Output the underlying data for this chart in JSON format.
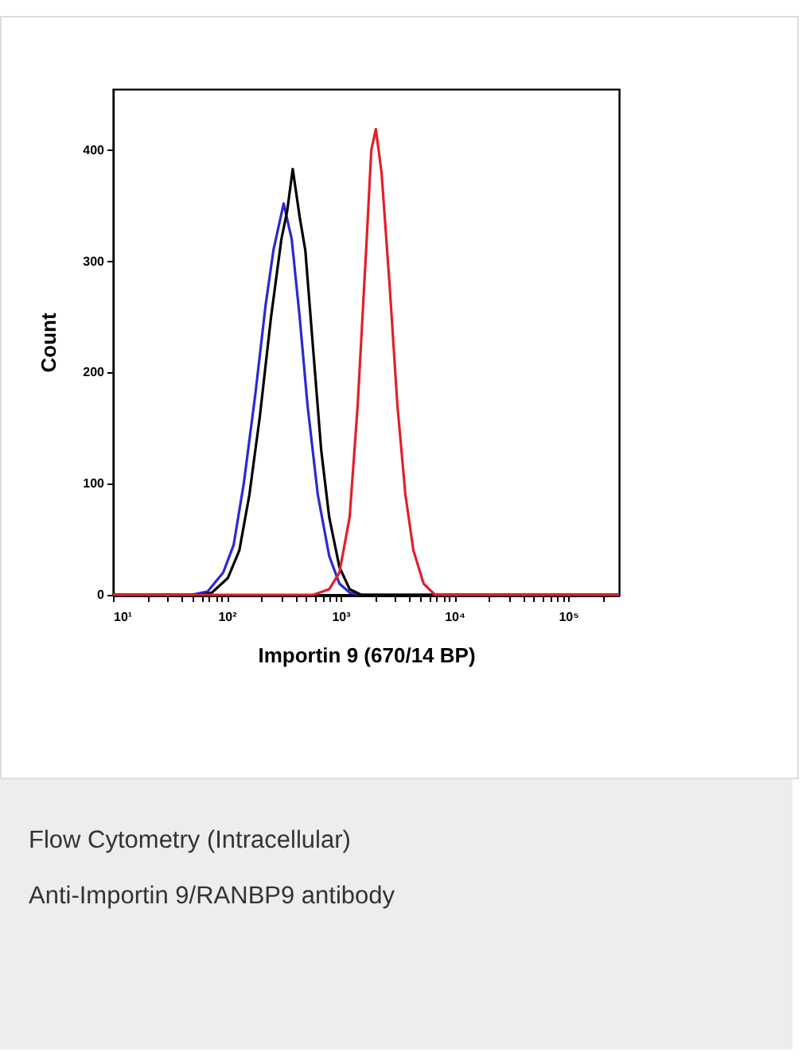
{
  "chart_data": {
    "type": "line",
    "xlabel": "Importin 9 (670/14 BP)",
    "ylabel": "Count",
    "log": "x",
    "grid": false,
    "legend": false,
    "marker": "none",
    "line_style": "solid",
    "xlim": [
      10,
      280000
    ],
    "ylim": [
      0,
      455
    ],
    "xticks": [
      {
        "value": 10,
        "label": "10¹"
      },
      {
        "value": 20,
        "label": null
      },
      {
        "value": 30,
        "label": null
      },
      {
        "value": 40,
        "label": null
      },
      {
        "value": 50,
        "label": null
      },
      {
        "value": 60,
        "label": null
      },
      {
        "value": 70,
        "label": null
      },
      {
        "value": 80,
        "label": null
      },
      {
        "value": 90,
        "label": null
      },
      {
        "value": 100,
        "label": "10²"
      },
      {
        "value": 200,
        "label": null
      },
      {
        "value": 300,
        "label": null
      },
      {
        "value": 400,
        "label": null
      },
      {
        "value": 500,
        "label": null
      },
      {
        "value": 600,
        "label": null
      },
      {
        "value": 700,
        "label": null
      },
      {
        "value": 800,
        "label": null
      },
      {
        "value": 900,
        "label": null
      },
      {
        "value": 1000,
        "label": "10³"
      },
      {
        "value": 2000,
        "label": null
      },
      {
        "value": 3000,
        "label": null
      },
      {
        "value": 4000,
        "label": null
      },
      {
        "value": 5000,
        "label": null
      },
      {
        "value": 6000,
        "label": null
      },
      {
        "value": 7000,
        "label": null
      },
      {
        "value": 8000,
        "label": null
      },
      {
        "value": 9000,
        "label": null
      },
      {
        "value": 10000,
        "label": "10⁴"
      },
      {
        "value": 20000,
        "label": null
      },
      {
        "value": 30000,
        "label": null
      },
      {
        "value": 40000,
        "label": null
      },
      {
        "value": 50000,
        "label": null
      },
      {
        "value": 60000,
        "label": null
      },
      {
        "value": 70000,
        "label": null
      },
      {
        "value": 80000,
        "label": null
      },
      {
        "value": 90000,
        "label": null
      },
      {
        "value": 100000,
        "label": "10⁵"
      },
      {
        "value": 200000,
        "label": null
      }
    ],
    "yticks": [
      0,
      100,
      200,
      300,
      400
    ],
    "series": [
      {
        "color": "#2a2ad0",
        "x": [
          10,
          49,
          68,
          93,
          115,
          141,
          178,
          219,
          257,
          316,
          372,
          437,
          513,
          631,
          794,
          977,
          1202,
          1514,
          280000
        ],
        "values": [
          0,
          0,
          3,
          20,
          45,
          100,
          180,
          260,
          310,
          352,
          320,
          250,
          170,
          90,
          35,
          10,
          2,
          0,
          0
        ]
      },
      {
        "color": "#000000",
        "x": [
          10,
          60,
          74,
          102,
          129,
          158,
          195,
          245,
          302,
          339,
          380,
          437,
          490,
          575,
          676,
          794,
          977,
          1202,
          1514,
          280000
        ],
        "values": [
          0,
          0,
          2,
          15,
          40,
          90,
          160,
          250,
          320,
          345,
          383,
          340,
          310,
          220,
          130,
          70,
          25,
          5,
          0,
          0
        ]
      },
      {
        "color": "#e0202a",
        "x": [
          10,
          575,
          794,
          977,
          1202,
          1413,
          1698,
          1862,
          2042,
          2291,
          2692,
          3162,
          3715,
          4365,
          5370,
          6761,
          280000
        ],
        "values": [
          0,
          0,
          5,
          20,
          70,
          170,
          320,
          400,
          419,
          380,
          280,
          170,
          90,
          40,
          10,
          0,
          0
        ]
      }
    ],
    "annotations": [
      "Flow Cytometry (Intracellular)",
      "Anti-Importin 9/RANBP9 antibody"
    ]
  }
}
